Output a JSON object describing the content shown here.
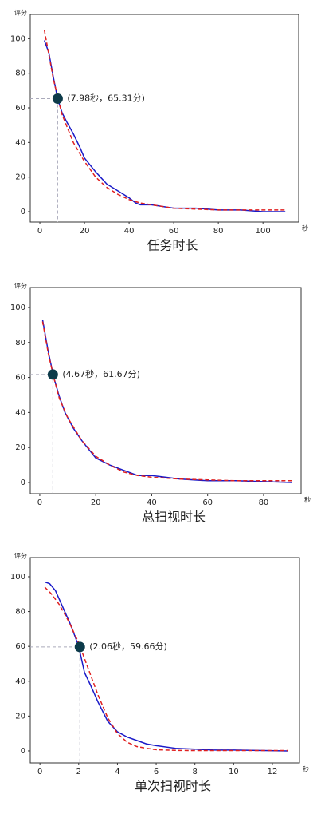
{
  "chart_data": [
    {
      "type": "line",
      "title": "任务时长",
      "y_label": "评分",
      "x_label": "秒",
      "xlim": [
        -4.3,
        116
      ],
      "xticks": [
        0,
        20,
        40,
        60,
        80,
        100
      ],
      "ylim": [
        -6,
        114
      ],
      "yticks": [
        0,
        20,
        40,
        60,
        80,
        100
      ],
      "series": [
        {
          "color": "#1a1ac8",
          "dash": false,
          "x": [
            2,
            4,
            6,
            8,
            10,
            12,
            15,
            18,
            20,
            25,
            30,
            35,
            40,
            43,
            45,
            50,
            55,
            60,
            70,
            80,
            90,
            100,
            110
          ],
          "values": [
            99,
            92,
            78,
            65,
            57,
            52,
            45,
            37,
            31,
            23,
            16,
            12,
            8,
            5,
            4,
            4,
            3,
            2,
            2,
            1,
            1,
            0,
            0
          ]
        },
        {
          "color": "#e02020",
          "dash": true,
          "x": [
            2,
            4,
            6,
            8,
            10,
            15,
            20,
            25,
            30,
            35,
            40,
            45,
            50,
            60,
            70,
            80,
            90,
            100,
            110
          ],
          "values": [
            105,
            91,
            77,
            66,
            56,
            40,
            29,
            20,
            14,
            10,
            7,
            5,
            4,
            2,
            1.5,
            1,
            1,
            1,
            1
          ]
        }
      ],
      "annotation": {
        "x": 7.98,
        "y": 65.31,
        "label": "(7.98秒，65.31分)"
      }
    },
    {
      "type": "line",
      "title": "总扫视时长",
      "y_label": "评分",
      "x_label": "秒",
      "xlim": [
        -3.4,
        93.4
      ],
      "xticks": [
        0,
        20,
        40,
        60,
        80
      ],
      "ylim": [
        -6.4,
        111.4
      ],
      "yticks": [
        0,
        20,
        40,
        60,
        80,
        100
      ],
      "series": [
        {
          "color": "#1a1ac8",
          "dash": false,
          "x": [
            1,
            3,
            5,
            7,
            9,
            12,
            15,
            18,
            20,
            25,
            30,
            35,
            40,
            45,
            50,
            60,
            70,
            80,
            90
          ],
          "values": [
            93,
            75,
            60,
            49,
            40,
            31,
            24,
            18,
            14,
            10,
            7,
            4,
            4,
            3,
            2,
            1,
            1,
            0.5,
            0
          ]
        },
        {
          "color": "#e02020",
          "dash": true,
          "x": [
            1,
            3,
            5,
            7,
            10,
            15,
            20,
            25,
            30,
            35,
            40,
            50,
            60,
            70,
            90
          ],
          "values": [
            92,
            74,
            60,
            48,
            37,
            24,
            15,
            10,
            6,
            4,
            3,
            2,
            1.5,
            1,
            1
          ]
        }
      ],
      "annotation": {
        "x": 4.67,
        "y": 61.67,
        "label": "(4.67秒，61.67分)"
      }
    },
    {
      "type": "line",
      "title": "单次扫视时长",
      "y_label": "评分",
      "x_label": "秒",
      "xlim": [
        -0.5,
        13.4
      ],
      "xticks": [
        0,
        2,
        4,
        6,
        8,
        10,
        12
      ],
      "ylim": [
        -6.9,
        111
      ],
      "yticks": [
        0,
        20,
        40,
        60,
        80,
        100
      ],
      "series": [
        {
          "color": "#1a1ac8",
          "dash": false,
          "x": [
            0.25,
            0.5,
            0.8,
            1.2,
            1.6,
            2.0,
            2.3,
            2.6,
            3.0,
            3.5,
            4.0,
            4.5,
            5,
            5.5,
            6,
            7,
            8,
            9,
            10,
            12.8
          ],
          "values": [
            97,
            96,
            92,
            82,
            72,
            60,
            45,
            38,
            28,
            17,
            11,
            8,
            6,
            4,
            3,
            1.5,
            1,
            0.5,
            0.5,
            0
          ]
        },
        {
          "color": "#e02020",
          "dash": true,
          "x": [
            0.25,
            0.6,
            1,
            1.5,
            2,
            2.5,
            3,
            3.5,
            4,
            4.5,
            5,
            5.5,
            6,
            7,
            8,
            10,
            12.8
          ],
          "values": [
            94,
            90,
            84,
            74,
            62,
            47,
            32,
            19,
            10,
            5,
            2.5,
            1.5,
            0.7,
            0.3,
            0.2,
            0.2,
            0.2
          ]
        }
      ],
      "annotation": {
        "x": 2.06,
        "y": 59.66,
        "label": "(2.06秒，59.66分)"
      }
    }
  ]
}
